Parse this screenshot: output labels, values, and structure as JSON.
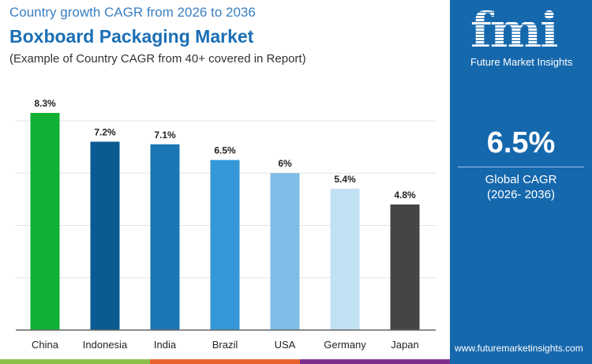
{
  "header": {
    "subtitle": "Country growth CAGR from 2026 to 2036",
    "title": "Boxboard Packaging Market",
    "note": "(Example of Country CAGR from 40+ covered in Report)"
  },
  "panel": {
    "logo": "fmi",
    "brand": "Future Market Insights",
    "value": "6.5%",
    "label": "Global CAGR",
    "range": "(2026- 2036)",
    "url": "www.futuremarketinsights.com",
    "bg": "#1668ad"
  },
  "chart_data": {
    "type": "bar",
    "title": "Boxboard Packaging Market",
    "categories": [
      "China",
      "Indonesia",
      "India",
      "Brazil",
      "USA",
      "Germany",
      "Japan"
    ],
    "values": [
      8.3,
      7.2,
      7.1,
      6.5,
      6,
      5.4,
      4.8
    ],
    "labels": [
      "8.3%",
      "7.2%",
      "7.1%",
      "6.5%",
      "6%",
      "5.4%",
      "4.8%"
    ],
    "colors": [
      "#10b135",
      "#0b5a92",
      "#1b76b3",
      "#3397d8",
      "#80bde6",
      "#c2e1f3",
      "#454545"
    ],
    "ylim": [
      0,
      8.3
    ],
    "grid": true
  }
}
